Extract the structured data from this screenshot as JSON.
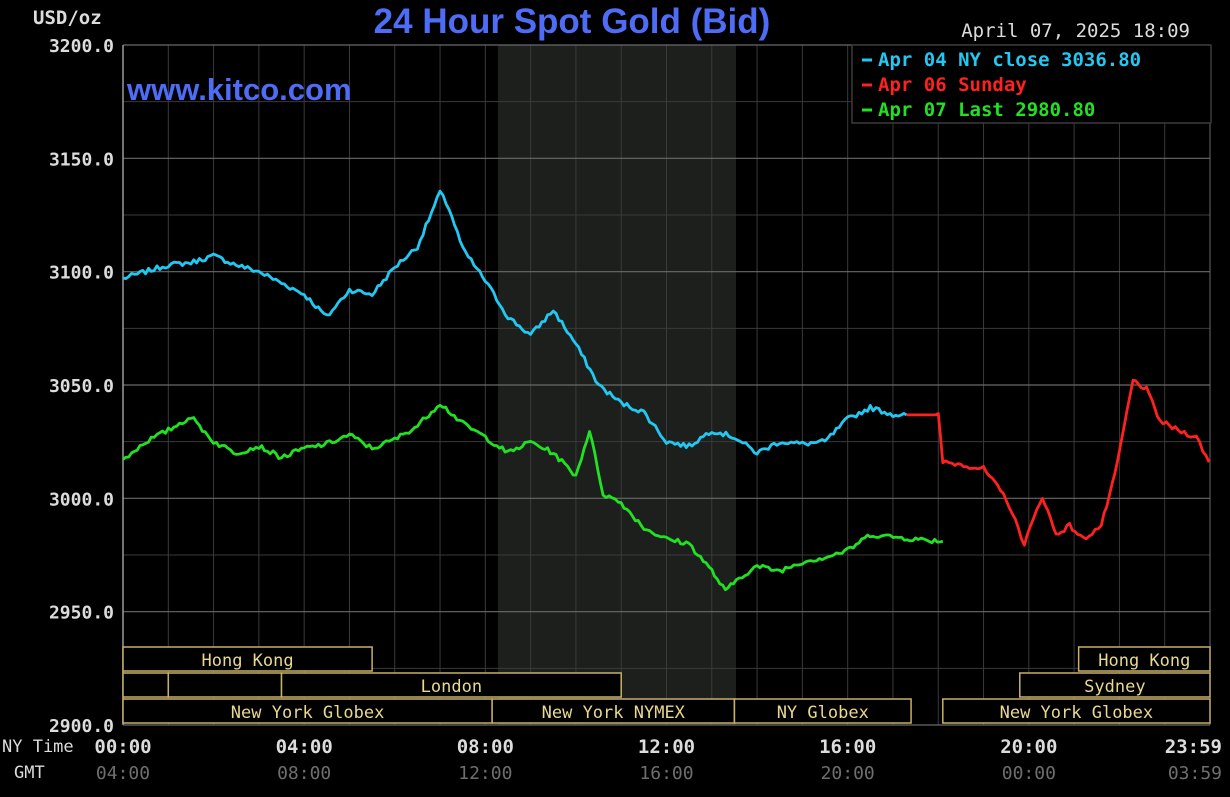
{
  "chart_data": {
    "type": "line",
    "title": "24 Hour Spot Gold (Bid)",
    "watermark": "www.kitco.com",
    "unit_label": "USD/oz",
    "timestamp": "April 07, 2025 18:09",
    "ylim": [
      2900,
      3200
    ],
    "y_ticks": [
      "3200.0",
      "3150.0",
      "3100.0",
      "3050.0",
      "3000.0",
      "2950.0",
      "2900.0"
    ],
    "x_row_labels": [
      "NY Time",
      "GMT"
    ],
    "x_ticks_ny": [
      "00:00",
      "04:00",
      "08:00",
      "12:00",
      "16:00",
      "20:00",
      "23:59"
    ],
    "x_ticks_gmt": [
      "04:00",
      "08:00",
      "12:00",
      "16:00",
      "20:00",
      "00:00",
      "03:59"
    ],
    "legend": [
      {
        "text": "Apr 04 NY close 3036.80",
        "color": "#22c8f2"
      },
      {
        "text": "Apr 06 Sunday",
        "color": "#ff2020"
      },
      {
        "text": "Apr 07 Last 2980.80",
        "color": "#22e022"
      }
    ],
    "series": [
      {
        "color": "#22c8f2",
        "x": [
          0,
          0.5,
          1,
          1.5,
          2,
          2.5,
          3,
          3.5,
          4,
          4.5,
          5,
          5.5,
          6,
          6.5,
          7,
          7.2,
          7.5,
          8,
          8.5,
          9,
          9.5,
          10,
          10.5,
          11,
          11.5,
          12,
          12.5,
          13,
          13.5,
          14,
          14.5,
          15,
          15.5,
          16,
          16.5,
          17,
          17.3
        ],
        "values": [
          3097,
          3100,
          3103,
          3104,
          3107,
          3103,
          3100,
          3095,
          3090,
          3080,
          3092,
          3090,
          3102,
          3111,
          3135,
          3128,
          3110,
          3096,
          3080,
          3072,
          3083,
          3068,
          3050,
          3042,
          3038,
          3025,
          3023,
          3030,
          3027,
          3020,
          3025,
          3024,
          3025,
          3035,
          3040,
          3037,
          3036.8
        ]
      },
      {
        "color": "#ff2020",
        "x": [
          17.3,
          18,
          18.1,
          18.5,
          19,
          19.5,
          19.9,
          20.3,
          20.6,
          20.9,
          21.2,
          21.4,
          21.6,
          21.9,
          22.3,
          22.6,
          22.9,
          23.3,
          23.7,
          23.98
        ],
        "values": [
          3036.8,
          3036.8,
          3016,
          3015,
          3013,
          3000,
          2980,
          3001,
          2984,
          2988,
          2982,
          2985,
          2988,
          3010,
          3052,
          3048,
          3034,
          3030,
          3027,
          3016
        ]
      },
      {
        "color": "#22e022",
        "x": [
          0,
          0.5,
          1,
          1.5,
          2,
          2.5,
          3,
          3.5,
          4,
          4.5,
          5,
          5.5,
          6,
          6.5,
          7,
          7.5,
          8,
          8.5,
          9,
          9.5,
          10,
          10.3,
          10.6,
          11,
          11.5,
          12,
          12.5,
          13,
          13.3,
          13.6,
          14,
          14.5,
          15,
          15.5,
          16,
          16.5,
          17,
          17.5,
          18.1
        ],
        "values": [
          3017,
          3025,
          3030,
          3036,
          3025,
          3020,
          3023,
          3018,
          3022,
          3024,
          3028,
          3022,
          3026,
          3032,
          3042,
          3033,
          3027,
          3020,
          3025,
          3020,
          3010,
          3030,
          3002,
          2998,
          2987,
          2982,
          2980,
          2968,
          2959,
          2965,
          2970,
          2968,
          2972,
          2974,
          2977,
          2984,
          2983,
          2982,
          2981
        ]
      }
    ],
    "sessions": [
      {
        "label": "Hong Kong"
      },
      {
        "label": "London"
      },
      {
        "label": "New York Globex"
      },
      {
        "label": "New York NYMEX"
      },
      {
        "label": "NY Globex"
      },
      {
        "label": "Hong Kong"
      },
      {
        "label": "Sydney"
      },
      {
        "label": "New York Globex"
      }
    ]
  }
}
